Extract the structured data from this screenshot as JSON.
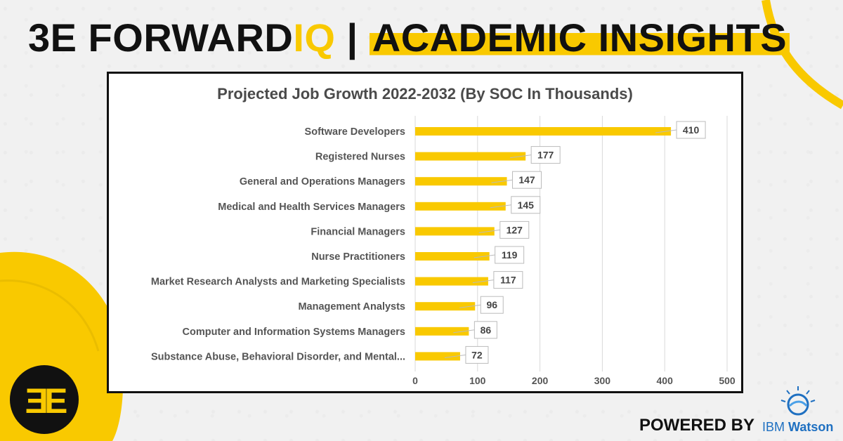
{
  "header": {
    "brand": "3E FORWARD",
    "accent": "IQ",
    "separator": " | ",
    "highlight": "ACADEMIC INSIGHTS"
  },
  "logo": {
    "text": "ƎE"
  },
  "footer": {
    "powered_by": "POWERED BY",
    "ibm": "IBM",
    "watson": "Watson"
  },
  "colors": {
    "accent": "#f9c900",
    "dark": "#111111",
    "label": "#555555",
    "ibm_blue": "#1f70c1"
  },
  "chart_data": {
    "type": "bar",
    "orientation": "horizontal",
    "title": "Projected Job Growth 2022-2032 (By SOC In Thousands)",
    "categories": [
      "Software Developers",
      "Registered Nurses",
      "General and Operations Managers",
      "Medical and Health Services Managers",
      "Financial Managers",
      "Nurse Practitioners",
      "Market Research Analysts and Marketing Specialists",
      "Management Analysts",
      "Computer and Information Systems Managers",
      "Substance Abuse, Behavioral Disorder, and Mental..."
    ],
    "values": [
      410,
      177,
      147,
      145,
      127,
      119,
      117,
      96,
      86,
      72
    ],
    "data_labels": [
      "410",
      "177",
      "147",
      "145",
      "127",
      "119",
      "117",
      "96",
      "86",
      "72"
    ],
    "xlim": [
      0,
      500
    ],
    "xticks": [
      0,
      100,
      200,
      300,
      400,
      500
    ],
    "xtick_labels": [
      "0",
      "100",
      "200",
      "300",
      "400",
      "500"
    ],
    "grid": true,
    "xlabel": "",
    "ylabel": ""
  }
}
